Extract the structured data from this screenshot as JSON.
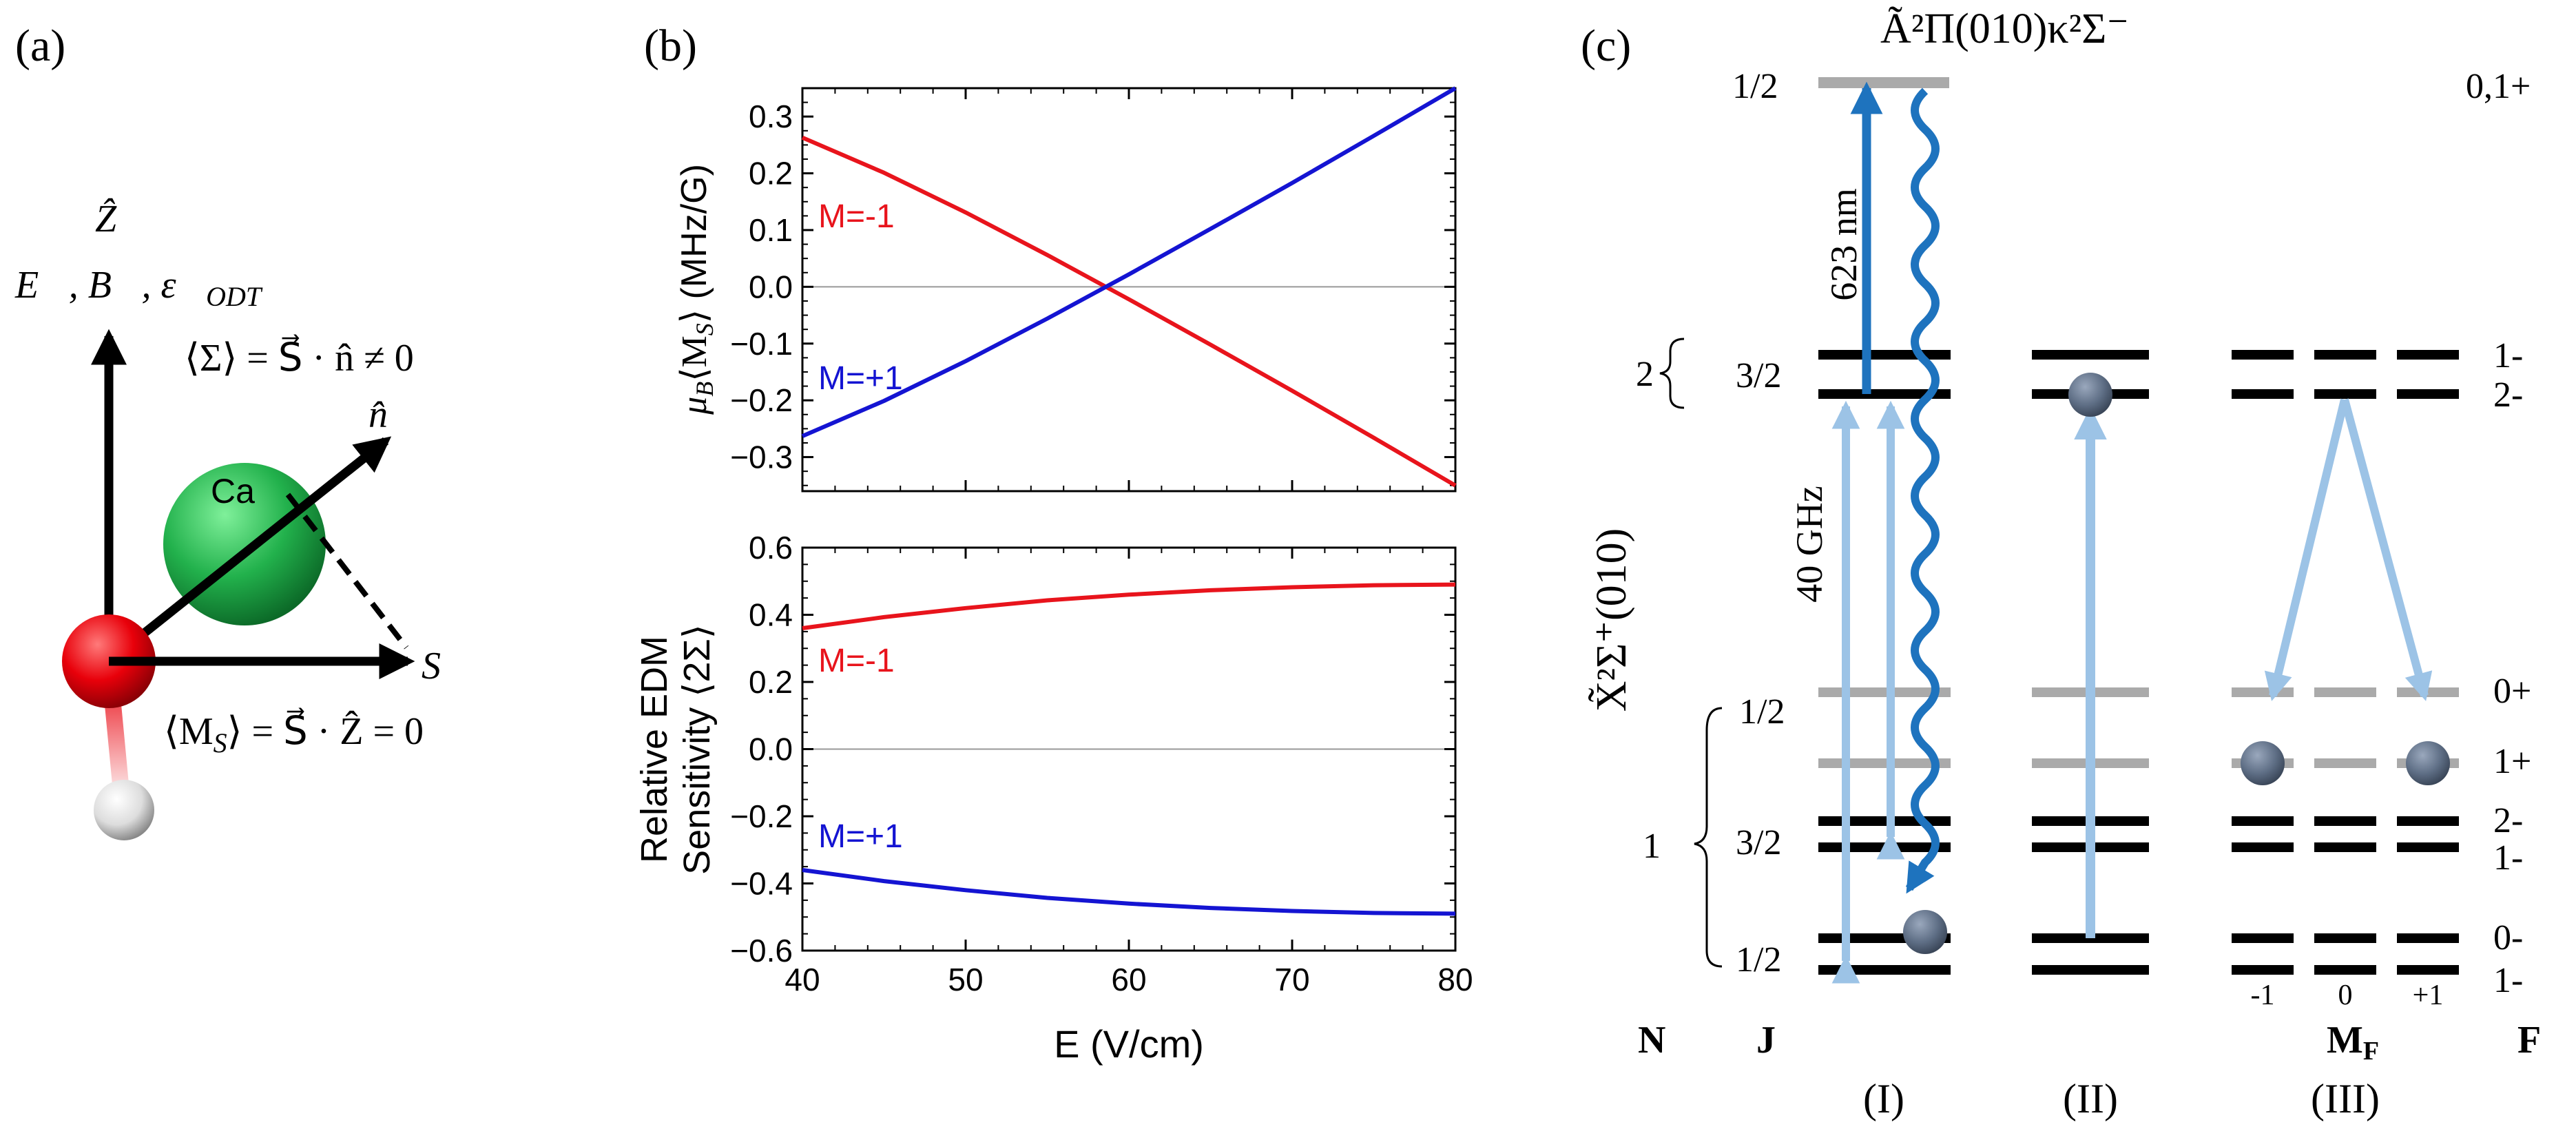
{
  "panel_labels": {
    "a": "(a)",
    "b": "(b)",
    "c": "(c)"
  },
  "panel_a": {
    "z_hat": "Ẑ",
    "field_label": "E⃗, B⃗, ε⃗",
    "field_sub": "ODT",
    "sigma_label": "⟨Σ⟩ = S⃗ · n̂ ≠ 0",
    "n_hat": "n̂",
    "ca_label": "Ca",
    "s_vec": "S⃗",
    "ms_label": "⟨M",
    "ms_sub": "S",
    "ms_rest": "⟩ = S⃗ · Ẑ = 0",
    "colors": {
      "ca": "#22b14c",
      "o": "#e8000a",
      "h": "#dddddd"
    }
  },
  "chart_data": [
    {
      "type": "line",
      "panel": "b-top",
      "ylabel": "μ_B⟨M_S⟩ (MHz/G)",
      "ylabel_main": "μ",
      "ylabel_sub1": "B",
      "ylabel_mid": "⟨M",
      "ylabel_sub2": "S",
      "ylabel_end": "⟩ (MHz/G)",
      "xlim": [
        40,
        80
      ],
      "ylim": [
        -0.36,
        0.35
      ],
      "yticks": [
        -0.3,
        -0.2,
        -0.1,
        0.0,
        0.1,
        0.2,
        0.3
      ],
      "ytick_labels": [
        "−0.3",
        "−0.2",
        "−0.1",
        "0.0",
        "0.1",
        "0.2",
        "0.3"
      ],
      "series": [
        {
          "name": "M=-1",
          "color": "#e8141c",
          "x": [
            40,
            45,
            50,
            55,
            60,
            65,
            70,
            75,
            80
          ],
          "y": [
            0.263,
            0.201,
            0.131,
            0.056,
            -0.022,
            -0.102,
            -0.183,
            -0.266,
            -0.35
          ]
        },
        {
          "name": "M=+1",
          "color": "#1414d2",
          "x": [
            40,
            45,
            50,
            55,
            60,
            65,
            70,
            75,
            80
          ],
          "y": [
            -0.263,
            -0.201,
            -0.131,
            -0.056,
            0.022,
            0.102,
            0.183,
            0.266,
            0.35
          ]
        }
      ]
    },
    {
      "type": "line",
      "panel": "b-bottom",
      "xlabel": "E (V/cm)",
      "ylabel_line1": "Relative EDM",
      "ylabel_line2": "Sensitivity ⟨2Σ⟩",
      "xlim": [
        40,
        80
      ],
      "ylim": [
        -0.6,
        0.6
      ],
      "xticks": [
        40,
        50,
        60,
        70,
        80
      ],
      "xtick_labels": [
        "40",
        "50",
        "60",
        "70",
        "80"
      ],
      "yticks": [
        -0.6,
        -0.4,
        -0.2,
        0.0,
        0.2,
        0.4,
        0.6
      ],
      "ytick_labels": [
        "−0.6",
        "−0.4",
        "−0.2",
        "0.0",
        "0.2",
        "0.4",
        "0.6"
      ],
      "series": [
        {
          "name": "M=-1",
          "color": "#e8141c",
          "x": [
            40,
            45,
            50,
            55,
            60,
            65,
            70,
            75,
            80
          ],
          "y": [
            0.36,
            0.393,
            0.42,
            0.443,
            0.46,
            0.473,
            0.482,
            0.488,
            0.49
          ]
        },
        {
          "name": "M=+1",
          "color": "#1414d2",
          "x": [
            40,
            45,
            50,
            55,
            60,
            65,
            70,
            75,
            80
          ],
          "y": [
            -0.36,
            -0.393,
            -0.42,
            -0.443,
            -0.46,
            -0.473,
            -0.482,
            -0.488,
            -0.49
          ]
        }
      ]
    }
  ],
  "panel_c": {
    "excited_state": "Ã²Π(010)κ²Σ⁻",
    "ground_state": "X̃²Σ⁺(010)",
    "wavelength": "623 nm",
    "frequency": "40 GHz",
    "j_labels": [
      "1/2",
      "3/2",
      "1/2",
      "3/2",
      "1/2"
    ],
    "n_labels": [
      "2",
      "1"
    ],
    "f_labels": [
      "0,1+",
      "1-",
      "2-",
      "0+",
      "1+",
      "2-",
      "1-",
      "0-",
      "1-"
    ],
    "mf_values": [
      "-1",
      "0",
      "+1"
    ],
    "col_headers": {
      "n": "N",
      "j": "J",
      "mf": "M",
      "mf_sub": "F",
      "f": "F"
    },
    "schemes": [
      "(I)",
      "(II)",
      "(III)"
    ],
    "colors": {
      "dark_blue": "#1e73be",
      "light_blue": "#9cc3e6",
      "molecule": "#5e6e85"
    }
  }
}
